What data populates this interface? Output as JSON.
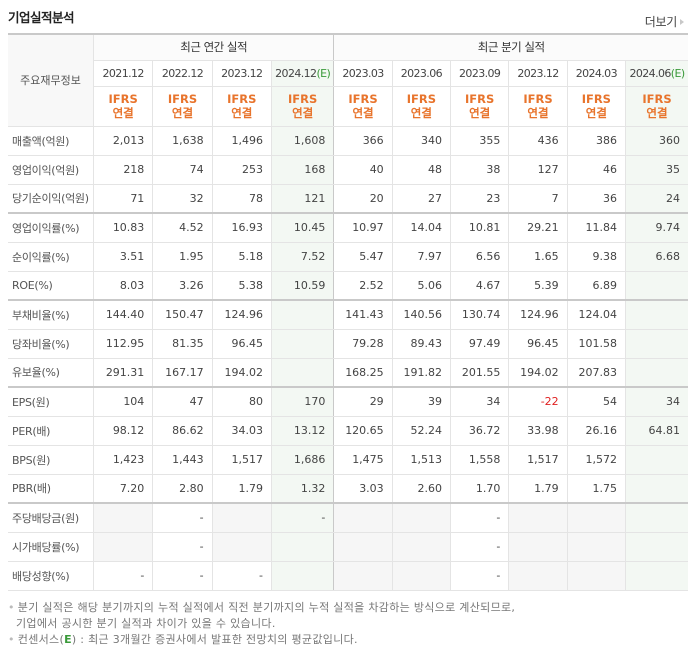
{
  "header": {
    "title": "기업실적분석",
    "more_label": "더보기"
  },
  "table": {
    "label_header": "주요재무정보",
    "groups": {
      "annual": "최근 연간 실적",
      "quarterly": "최근 분기 실적"
    },
    "periods": [
      {
        "date": "2021.12",
        "est": ""
      },
      {
        "date": "2022.12",
        "est": ""
      },
      {
        "date": "2023.12",
        "est": ""
      },
      {
        "date": "2024.12",
        "est": "(E)"
      },
      {
        "date": "2023.03",
        "est": ""
      },
      {
        "date": "2023.06",
        "est": ""
      },
      {
        "date": "2023.09",
        "est": ""
      },
      {
        "date": "2023.12",
        "est": ""
      },
      {
        "date": "2024.03",
        "est": ""
      },
      {
        "date": "2024.06",
        "est": "(E)"
      }
    ],
    "basis": {
      "line1": "IFRS",
      "line2": "연결"
    },
    "rows": [
      {
        "label": "매출액(억원)",
        "values": [
          "2,013",
          "1,638",
          "1,496",
          "1,608",
          "366",
          "340",
          "355",
          "436",
          "386",
          "360"
        ]
      },
      {
        "label": "영업이익(억원)",
        "values": [
          "218",
          "74",
          "253",
          "168",
          "40",
          "48",
          "38",
          "127",
          "46",
          "35"
        ]
      },
      {
        "label": "당기순이익(억원)",
        "values": [
          "71",
          "32",
          "78",
          "121",
          "20",
          "27",
          "23",
          "7",
          "36",
          "24"
        ]
      },
      {
        "label": "영업이익률(%)",
        "values": [
          "10.83",
          "4.52",
          "16.93",
          "10.45",
          "10.97",
          "14.04",
          "10.81",
          "29.21",
          "11.84",
          "9.74"
        ]
      },
      {
        "label": "순이익률(%)",
        "values": [
          "3.51",
          "1.95",
          "5.18",
          "7.52",
          "5.47",
          "7.97",
          "6.56",
          "1.65",
          "9.38",
          "6.68"
        ]
      },
      {
        "label": "ROE(%)",
        "values": [
          "8.03",
          "3.26",
          "5.38",
          "10.59",
          "2.52",
          "5.06",
          "4.67",
          "5.39",
          "6.89",
          ""
        ]
      },
      {
        "label": "부채비율(%)",
        "values": [
          "144.40",
          "150.47",
          "124.96",
          "",
          "141.43",
          "140.56",
          "130.74",
          "124.96",
          "124.04",
          ""
        ]
      },
      {
        "label": "당좌비율(%)",
        "values": [
          "112.95",
          "81.35",
          "96.45",
          "",
          "79.28",
          "89.43",
          "97.49",
          "96.45",
          "101.58",
          ""
        ]
      },
      {
        "label": "유보율(%)",
        "values": [
          "291.31",
          "167.17",
          "194.02",
          "",
          "168.25",
          "191.82",
          "201.55",
          "194.02",
          "207.83",
          ""
        ]
      },
      {
        "label": "EPS(원)",
        "values": [
          "104",
          "47",
          "80",
          "170",
          "29",
          "39",
          "34",
          "-22",
          "54",
          "34"
        ]
      },
      {
        "label": "PER(배)",
        "values": [
          "98.12",
          "86.62",
          "34.03",
          "13.12",
          "120.65",
          "52.24",
          "36.72",
          "33.98",
          "26.16",
          "64.81"
        ]
      },
      {
        "label": "BPS(원)",
        "values": [
          "1,423",
          "1,443",
          "1,517",
          "1,686",
          "1,475",
          "1,513",
          "1,558",
          "1,517",
          "1,572",
          ""
        ]
      },
      {
        "label": "PBR(배)",
        "values": [
          "7.20",
          "2.80",
          "1.79",
          "1.32",
          "3.03",
          "2.60",
          "1.70",
          "1.79",
          "1.75",
          ""
        ]
      },
      {
        "label": "주당배당금(원)",
        "values": [
          "",
          "-",
          "",
          "-",
          "",
          "",
          "-",
          "",
          "",
          ""
        ]
      },
      {
        "label": "시가배당률(%)",
        "values": [
          "",
          "-",
          "",
          "",
          "",
          "",
          "-",
          "",
          "",
          ""
        ]
      },
      {
        "label": "배당성향(%)",
        "values": [
          "-",
          "-",
          "-",
          "",
          "",
          "",
          "-",
          "",
          "",
          ""
        ]
      }
    ]
  },
  "notes": {
    "line1": "분기 실적은 해당 분기까지의 누적 실적에서 직전 분기까지의 누적 실적을 차감하는 방식으로 계산되므로,",
    "line2": "기업에서 공시한 분기 실적과 차이가 있을 수 있습니다.",
    "line3_prefix": "컨센서스(",
    "line3_mark": "E",
    "line3_suffix": ") : 최근 3개월간 증권사에서 발표한 전망치의 평균값입니다."
  },
  "colors": {
    "ifrs_orange": "#e8742c",
    "estimate_green": "#3a9a3a",
    "estimate_bg": "#f3f8f3",
    "negative_red": "#e02020",
    "empty_gray_bg": "#f6f6f6"
  }
}
